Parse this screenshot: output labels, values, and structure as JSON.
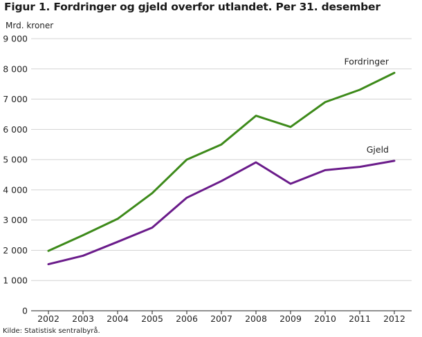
{
  "title": "Figur 1. Fordringer og gjeld overfor utlandet. Per 31. desember",
  "source": "Kilde: Statistisk sentralbyrå.",
  "chart_data": {
    "type": "line",
    "title": "Figur 1. Fordringer og gjeld overfor utlandet. Per 31. desember",
    "xlabel": "",
    "ylabel": "Mrd. kroner",
    "x": [
      "2002",
      "2003",
      "2004",
      "2005",
      "2006",
      "2007",
      "2008",
      "2009",
      "2010",
      "2011",
      "2012"
    ],
    "ylim": [
      0,
      9000
    ],
    "yticks": [
      0,
      1000,
      2000,
      3000,
      4000,
      5000,
      6000,
      7000,
      8000,
      9000
    ],
    "ytick_labels": [
      "0",
      "1 000",
      "2 000",
      "3 000",
      "4 000",
      "5 000",
      "6 000",
      "7 000",
      "8 000",
      "9 000"
    ],
    "grid": "horizontal",
    "series": [
      {
        "name": "Fordringer",
        "color": "#3d8a1a",
        "values": [
          1980,
          2500,
          3040,
          3890,
          5000,
          5500,
          6450,
          6080,
          6900,
          7310,
          7870
        ]
      },
      {
        "name": "Gjeld",
        "color": "#6a1b8a",
        "values": [
          1540,
          1820,
          2280,
          2750,
          3740,
          4290,
          4910,
          4200,
          4650,
          4760,
          4960
        ]
      }
    ]
  }
}
